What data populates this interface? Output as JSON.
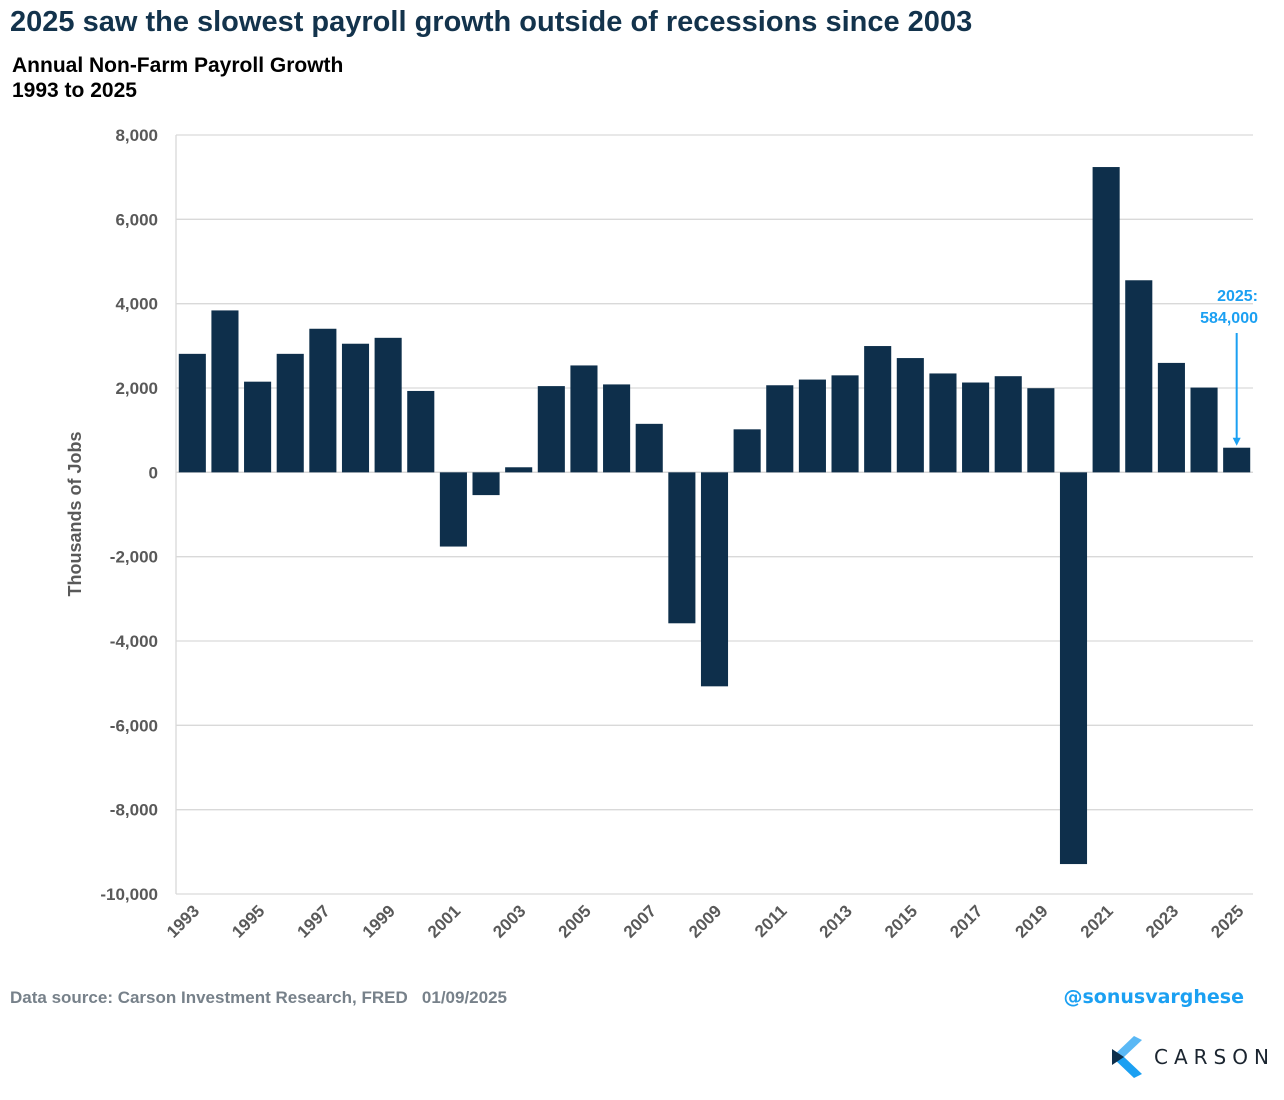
{
  "header": {
    "title": "2025 saw the slowest payroll growth outside of recessions since 2003",
    "subtitle_line1": "Annual Non-Farm Payroll Growth",
    "subtitle_line2": "1993 to 2025"
  },
  "footer": {
    "source": "Data source: Carson Investment Research, FRED   01/09/2025",
    "handle": "@sonusvarghese",
    "logo_text": "CARSON"
  },
  "colors": {
    "bar": "#0e2f4b",
    "annotation": "#1ba0f2",
    "title": "#13334c"
  },
  "chart_data": {
    "type": "bar",
    "title": "Annual Non-Farm Payroll Growth",
    "subtitle": "1993 to 2025",
    "xlabel": "",
    "ylabel": "Thousands of Jobs",
    "ylim": [
      -10000,
      8000
    ],
    "yticks": [
      8000,
      6000,
      4000,
      2000,
      0,
      -2000,
      -4000,
      -6000,
      -8000,
      -10000
    ],
    "ytick_labels": [
      "8,000",
      "6,000",
      "4,000",
      "2,000",
      "0",
      "-2,000",
      "-4,000",
      "-6,000",
      "-8,000",
      "-10,000"
    ],
    "grid": true,
    "categories": [
      "1993",
      "1994",
      "1995",
      "1996",
      "1997",
      "1998",
      "1999",
      "2000",
      "2001",
      "2002",
      "2003",
      "2004",
      "2005",
      "2006",
      "2007",
      "2008",
      "2009",
      "2010",
      "2011",
      "2012",
      "2013",
      "2014",
      "2015",
      "2016",
      "2017",
      "2018",
      "2019",
      "2020",
      "2021",
      "2022",
      "2023",
      "2024",
      "2025"
    ],
    "xtick_labels": [
      "1993",
      "1995",
      "1997",
      "1999",
      "2001",
      "2003",
      "2005",
      "2007",
      "2009",
      "2011",
      "2013",
      "2015",
      "2017",
      "2019",
      "2021",
      "2023",
      "2025"
    ],
    "values": [
      2810,
      3840,
      2150,
      2810,
      3405,
      3050,
      3190,
      1930,
      -1760,
      -540,
      120,
      2045,
      2535,
      2085,
      1150,
      -3580,
      -5075,
      1020,
      2065,
      2200,
      2300,
      2995,
      2710,
      2345,
      2130,
      2280,
      1995,
      -9290,
      7240,
      4555,
      2595,
      2010,
      584
    ],
    "annotations": [
      {
        "category": "2025",
        "line1": "2025:",
        "line2": "584,000"
      }
    ]
  }
}
